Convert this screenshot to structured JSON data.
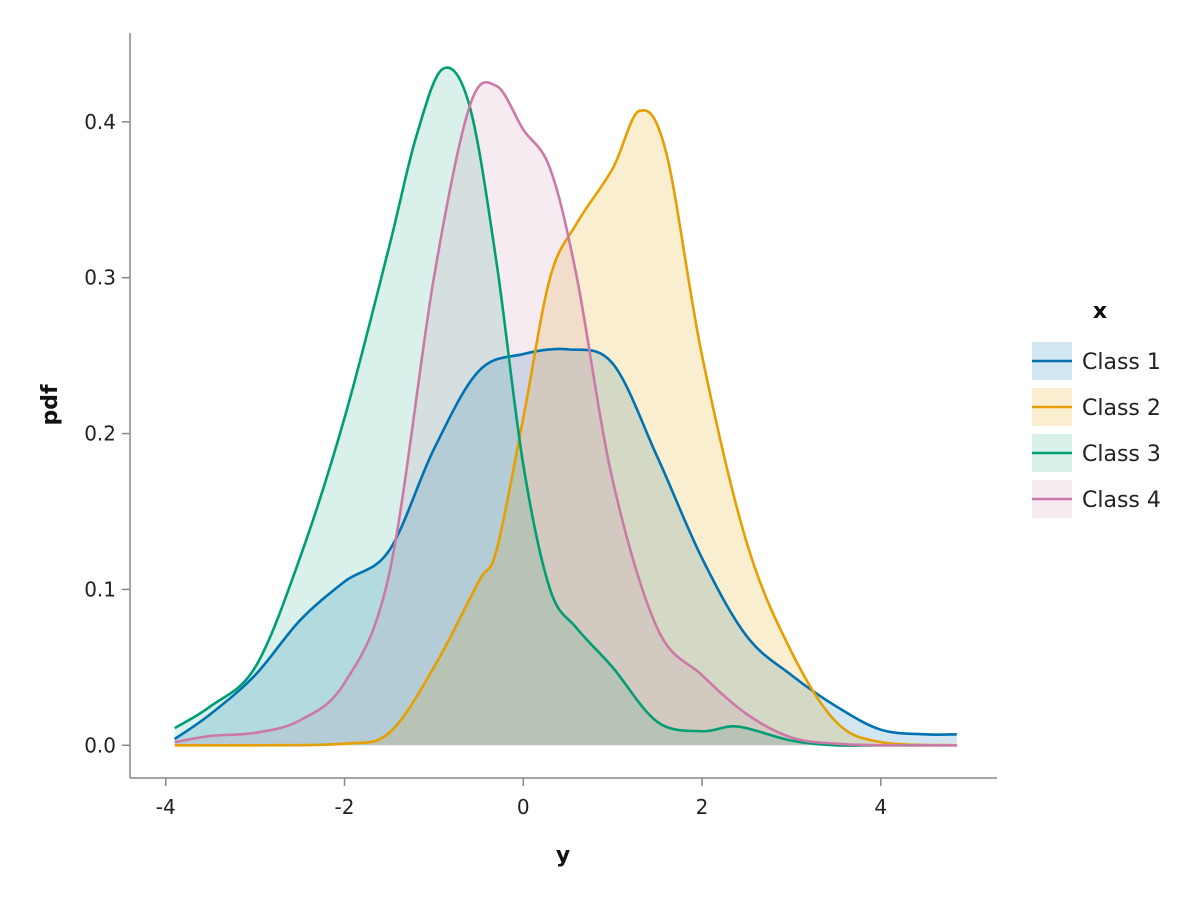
{
  "chart_data": {
    "type": "area",
    "xlabel": "y",
    "ylabel": "pdf",
    "xlim": [
      -4.4,
      5.3
    ],
    "ylim": [
      -0.021,
      0.457
    ],
    "xticks": [
      -4,
      -2,
      0,
      2,
      4
    ],
    "xtick_labels": [
      "-4",
      "-2",
      "0",
      "2",
      "4"
    ],
    "yticks": [
      0.0,
      0.1,
      0.2,
      0.3,
      0.4
    ],
    "ytick_labels": [
      "0.0",
      "0.1",
      "0.2",
      "0.3",
      "0.4"
    ],
    "grid": false,
    "legend": {
      "title": "x",
      "placement": "right"
    },
    "series": [
      {
        "name": "Class 1",
        "color": "#0072B2",
        "fill_opacity": 0.18,
        "x": [
          -3.9,
          -3.5,
          -3.0,
          -2.5,
          -2.0,
          -1.5,
          -1.0,
          -0.5,
          0.0,
          0.5,
          1.0,
          1.5,
          2.0,
          2.5,
          3.0,
          3.5,
          4.0,
          4.5,
          4.85
        ],
        "y": [
          0.004,
          0.02,
          0.045,
          0.08,
          0.105,
          0.125,
          0.19,
          0.24,
          0.251,
          0.254,
          0.245,
          0.185,
          0.12,
          0.07,
          0.045,
          0.025,
          0.01,
          0.007,
          0.007
        ]
      },
      {
        "name": "Class 2",
        "color": "#E69F00",
        "fill_opacity": 0.18,
        "x": [
          -3.9,
          -3.0,
          -2.0,
          -1.5,
          -1.0,
          -0.5,
          -0.3,
          0.0,
          0.3,
          0.6,
          1.0,
          1.3,
          1.6,
          2.0,
          2.5,
          3.0,
          3.5,
          4.0,
          4.85
        ],
        "y": [
          0.0,
          0.0,
          0.001,
          0.008,
          0.05,
          0.105,
          0.125,
          0.21,
          0.3,
          0.335,
          0.37,
          0.407,
          0.38,
          0.25,
          0.13,
          0.06,
          0.015,
          0.002,
          0.0
        ]
      },
      {
        "name": "Class 3",
        "color": "#009E73",
        "fill_opacity": 0.15,
        "x": [
          -3.9,
          -3.5,
          -3.0,
          -2.5,
          -2.0,
          -1.5,
          -1.2,
          -0.9,
          -0.6,
          -0.3,
          0.0,
          0.3,
          0.6,
          1.0,
          1.5,
          2.0,
          2.4,
          3.0,
          3.5,
          4.0,
          4.85
        ],
        "y": [
          0.011,
          0.025,
          0.05,
          0.12,
          0.21,
          0.32,
          0.39,
          0.434,
          0.41,
          0.31,
          0.18,
          0.1,
          0.075,
          0.05,
          0.015,
          0.009,
          0.012,
          0.003,
          0.0,
          0.0,
          0.0
        ]
      },
      {
        "name": "Class 4",
        "color": "#CC79A7",
        "fill_opacity": 0.15,
        "x": [
          -3.9,
          -3.5,
          -3.0,
          -2.5,
          -2.0,
          -1.5,
          -1.0,
          -0.6,
          -0.3,
          0.0,
          0.3,
          0.6,
          1.0,
          1.5,
          2.0,
          2.5,
          3.0,
          3.5,
          4.0,
          4.85
        ],
        "y": [
          0.002,
          0.006,
          0.008,
          0.016,
          0.04,
          0.11,
          0.3,
          0.41,
          0.423,
          0.395,
          0.37,
          0.3,
          0.17,
          0.075,
          0.045,
          0.02,
          0.005,
          0.001,
          0.0,
          0.0
        ]
      }
    ]
  }
}
